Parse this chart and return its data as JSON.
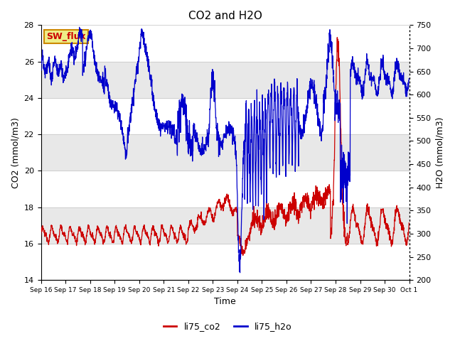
{
  "title": "CO2 and H2O",
  "xlabel": "Time",
  "ylabel_left": "CO2 (mmol/m3)",
  "ylabel_right": "H2O (mmol/m3)",
  "ylim_left": [
    14,
    28
  ],
  "ylim_right": [
    200,
    750
  ],
  "yticks_left": [
    14,
    16,
    18,
    20,
    22,
    24,
    26,
    28
  ],
  "yticks_right": [
    200,
    250,
    300,
    350,
    400,
    450,
    500,
    550,
    600,
    650,
    700,
    750
  ],
  "legend_labels": [
    "li75_co2",
    "li75_h2o"
  ],
  "line_color_co2": "#cc0000",
  "line_color_h2o": "#0000cc",
  "annotation_text": "SW_flux",
  "annotation_bg": "#eeee88",
  "annotation_border": "#cc8800",
  "annotation_text_color": "#cc0000",
  "band_color": "#e8e8e8",
  "background_color": "#ffffff",
  "plot_bg_color": "#ffffff"
}
